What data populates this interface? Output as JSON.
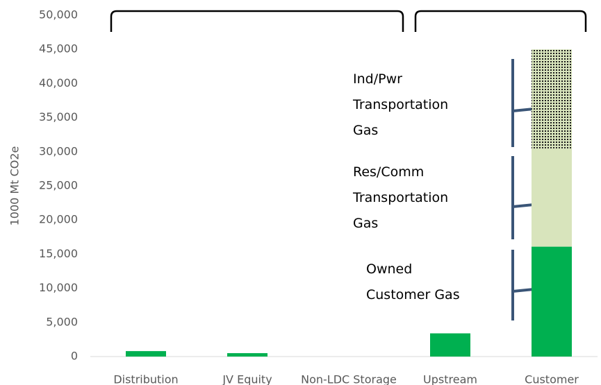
{
  "chart_data": {
    "type": "stacked_bar",
    "y_label": "1000 Mt CO2e",
    "categories": [
      "Distribution",
      "JV Equity",
      "Non-LDC Storage",
      "Upstream",
      "Customer"
    ],
    "series": [
      {
        "name": "Owned Customer Gas",
        "color": "#00b050",
        "values": [
          800,
          500,
          0,
          3400,
          16100
        ]
      },
      {
        "name": "Res/Comm Transportation Gas",
        "color": "#d8e4bc",
        "values": [
          null,
          null,
          null,
          null,
          14400
        ]
      },
      {
        "name": "Ind/Pwr Transportation Gas",
        "color": "#d8e4bc",
        "pattern": "dots",
        "values": [
          null,
          null,
          null,
          null,
          14500
        ]
      }
    ],
    "ylim": [
      0,
      50000
    ],
    "yticks": [
      0,
      {
        "value": 5000,
        "label": "5,000"
      },
      {
        "value": 10000,
        "label": "10,000"
      },
      {
        "value": 15000,
        "label": "15,000"
      },
      {
        "value": 20000,
        "label": "20,000"
      },
      {
        "value": 25000,
        "label": "25,000"
      },
      {
        "value": 30000,
        "label": "30,000"
      },
      {
        "value": 35000,
        "label": "35,000"
      },
      {
        "value": 40000,
        "label": "40,000"
      },
      {
        "value": 45000,
        "label": "45,000"
      },
      {
        "value": 50000,
        "label": "50,000"
      }
    ],
    "grid": false
  }
}
